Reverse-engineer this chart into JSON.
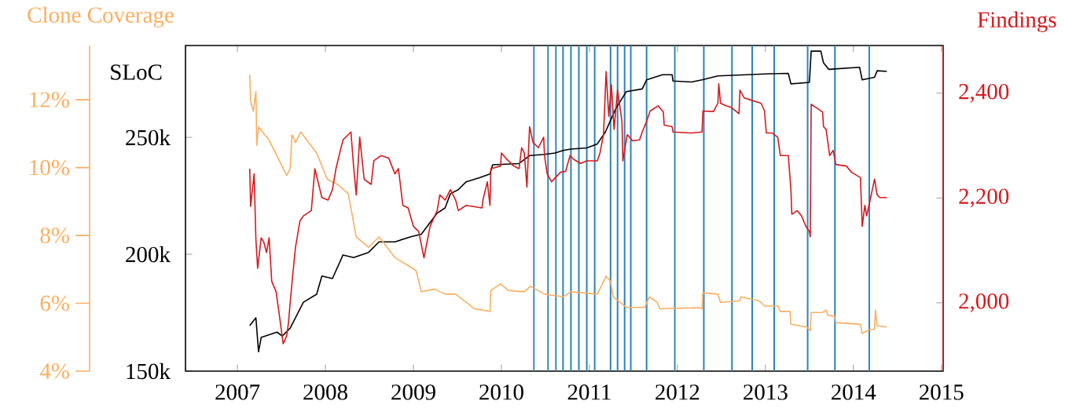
{
  "chart_data": {
    "type": "line",
    "ylabel": "SLoC",
    "y2label": "Findings",
    "y3label": "Clone Coverage",
    "xlim": [
      2006.41,
      2015.02
    ],
    "xticks": [
      2007,
      2008,
      2009,
      2010,
      2011,
      2012,
      2013,
      2014,
      2015
    ],
    "ylim": [
      150000,
      289300
    ],
    "yticks": [
      {
        "value": 150000,
        "label": "150k"
      },
      {
        "value": 200000,
        "label": "200k"
      },
      {
        "value": 250000,
        "label": "250k"
      }
    ],
    "y2lim": [
      1869.7,
      2491
    ],
    "y2ticks": [
      {
        "value": 2000,
        "label": "2,000"
      },
      {
        "value": 2200,
        "label": "2,200"
      },
      {
        "value": 2400,
        "label": "2,400"
      }
    ],
    "y3lim": [
      4,
      13.6
    ],
    "y3ticks": [
      {
        "value": 4,
        "label": "4%"
      },
      {
        "value": 6,
        "label": "6%"
      },
      {
        "value": 8,
        "label": "8%"
      },
      {
        "value": 10,
        "label": "10%"
      },
      {
        "value": 12,
        "label": "12%"
      }
    ],
    "series": [
      {
        "color": "#fdae61",
        "axis": "y3",
        "x": [
          2007.14,
          2007.15,
          2007.18,
          2007.21,
          2007.22,
          2007.24,
          2007.36,
          2007.56,
          2007.6,
          2007.62,
          2007.66,
          2007.72,
          2007.9,
          2008.02,
          2008.14,
          2008.26,
          2008.35,
          2008.49,
          2008.61,
          2008.79,
          2008.94,
          2009.03,
          2009.09,
          2009.24,
          2009.36,
          2009.48,
          2009.6,
          2009.69,
          2009.87,
          2009.88,
          2009.99,
          2010.08,
          2010.26,
          2010.33,
          2010.49,
          2010.7,
          2010.79,
          2011.09,
          2011.19,
          2011.24,
          2011.27,
          2011.42,
          2011.63,
          2011.68,
          2011.77,
          2011.8,
          2012.25,
          2012.28,
          2012.29,
          2012.46,
          2012.49,
          2012.71,
          2012.72,
          2012.93,
          2012.99,
          2013.14,
          2013.17,
          2013.28,
          2013.29,
          2013.47,
          2013.51,
          2013.52,
          2013.65,
          2013.69,
          2013.71,
          2013.79,
          2013.8,
          2014.08,
          2014.1,
          2014.19,
          2014.24,
          2014.25,
          2014.27,
          2014.38
        ],
        "values": [
          12.74,
          11.97,
          11.66,
          12.24,
          10.66,
          11.2,
          10.81,
          9.77,
          9.97,
          10.97,
          10.74,
          11.05,
          10.43,
          9.66,
          9.5,
          9.23,
          7.96,
          7.65,
          7.96,
          7.35,
          7.11,
          6.96,
          6.34,
          6.42,
          6.27,
          6.27,
          6.03,
          5.84,
          5.76,
          6.38,
          6.57,
          6.38,
          6.34,
          6.5,
          6.27,
          6.19,
          6.34,
          6.27,
          6.8,
          6.65,
          6.19,
          5.88,
          5.88,
          6.19,
          6.03,
          5.84,
          5.87,
          5.84,
          6.31,
          6.27,
          6.03,
          6.07,
          6.19,
          6.07,
          5.92,
          5.92,
          5.76,
          5.76,
          5.38,
          5.3,
          5.19,
          5.73,
          5.73,
          5.8,
          5.65,
          5.61,
          5.43,
          5.38,
          5.11,
          5.23,
          5.23,
          5.8,
          5.34,
          5.3
        ]
      },
      {
        "color": "#d7191c",
        "axis": "y2",
        "x": [
          2007.14,
          2007.15,
          2007.19,
          2007.21,
          2007.23,
          2007.27,
          2007.3,
          2007.33,
          2007.36,
          2007.39,
          2007.44,
          2007.48,
          2007.52,
          2007.56,
          2007.58,
          2007.6,
          2007.63,
          2007.66,
          2007.71,
          2007.75,
          2007.84,
          2007.88,
          2007.96,
          2008.03,
          2008.08,
          2008.12,
          2008.17,
          2008.2,
          2008.29,
          2008.32,
          2008.35,
          2008.39,
          2008.44,
          2008.52,
          2008.55,
          2008.63,
          2008.72,
          2008.79,
          2008.83,
          2008.88,
          2008.94,
          2009.0,
          2009.06,
          2009.12,
          2009.19,
          2009.27,
          2009.3,
          2009.36,
          2009.42,
          2009.48,
          2009.51,
          2009.6,
          2009.78,
          2009.79,
          2009.84,
          2009.87,
          2009.88,
          2009.99,
          2010.0,
          2010.05,
          2010.14,
          2010.2,
          2010.23,
          2010.26,
          2010.29,
          2010.32,
          2010.36,
          2010.42,
          2010.48,
          2010.49,
          2010.52,
          2010.57,
          2010.67,
          2010.73,
          2010.78,
          2010.82,
          2010.9,
          2010.97,
          2011.09,
          2011.12,
          2011.16,
          2011.19,
          2011.22,
          2011.25,
          2011.28,
          2011.32,
          2011.37,
          2011.38,
          2011.43,
          2011.49,
          2011.57,
          2011.6,
          2011.65,
          2011.69,
          2011.78,
          2011.84,
          2011.85,
          2011.94,
          2011.95,
          2012.16,
          2012.28,
          2012.29,
          2012.41,
          2012.46,
          2012.47,
          2012.49,
          2012.55,
          2012.61,
          2012.7,
          2012.71,
          2012.76,
          2012.85,
          2012.95,
          2012.99,
          2013.01,
          2013.08,
          2013.14,
          2013.17,
          2013.26,
          2013.29,
          2013.3,
          2013.36,
          2013.41,
          2013.46,
          2013.5,
          2013.51,
          2013.52,
          2013.59,
          2013.65,
          2013.66,
          2013.69,
          2013.73,
          2013.77,
          2013.8,
          2013.92,
          2013.98,
          2014.08,
          2014.1,
          2014.13,
          2014.15,
          2014.19,
          2014.24,
          2014.27,
          2014.3,
          2014.38
        ],
        "values": [
          2256,
          2184,
          2246,
          2121,
          2066,
          2124,
          2116,
          2096,
          2124,
          2041,
          2021,
          1972,
          1922,
          1937,
          1962,
          2001,
          2056,
          2106,
          2156,
          2166,
          2176,
          2256,
          2201,
          2196,
          2216,
          2256,
          2291,
          2311,
          2326,
          2261,
          2206,
          2316,
          2236,
          2226,
          2271,
          2281,
          2276,
          2246,
          2256,
          2186,
          2181,
          2146,
          2136,
          2086,
          2146,
          2176,
          2206,
          2196,
          2216,
          2196,
          2176,
          2186,
          2181,
          2196,
          2231,
          2186,
          2256,
          2261,
          2286,
          2276,
          2261,
          2256,
          2296,
          2286,
          2221,
          2336,
          2306,
          2296,
          2316,
          2281,
          2246,
          2231,
          2249,
          2251,
          2281,
          2274,
          2266,
          2271,
          2271,
          2286,
          2321,
          2441,
          2356,
          2416,
          2331,
          2406,
          2346,
          2271,
          2321,
          2309,
          2311,
          2326,
          2346,
          2366,
          2376,
          2364,
          2339,
          2336,
          2326,
          2324,
          2326,
          2366,
          2365,
          2381,
          2418,
          2381,
          2376,
          2373,
          2361,
          2406,
          2391,
          2386,
          2381,
          2366,
          2324,
          2324,
          2316,
          2281,
          2281,
          2216,
          2169,
          2176,
          2166,
          2146,
          2136,
          2126,
          2379,
          2371,
          2364,
          2336,
          2331,
          2281,
          2291,
          2264,
          2261,
          2249,
          2239,
          2146,
          2186,
          2166,
          2196,
          2236,
          2206,
          2201,
          2201
        ]
      },
      {
        "color": "#000000",
        "axis": "y",
        "x": [
          2007.14,
          2007.21,
          2007.24,
          2007.27,
          2007.45,
          2007.51,
          2007.6,
          2007.75,
          2007.9,
          2007.96,
          2008.08,
          2008.2,
          2008.32,
          2008.49,
          2008.61,
          2008.79,
          2008.97,
          2009.09,
          2009.27,
          2009.36,
          2009.42,
          2009.51,
          2009.6,
          2009.75,
          2009.87,
          2009.9,
          2010.2,
          2010.32,
          2010.49,
          2010.61,
          2010.7,
          2010.79,
          2010.97,
          2011.09,
          2011.18,
          2011.3,
          2011.42,
          2011.6,
          2011.65,
          2011.83,
          2011.94,
          2011.95,
          2012.16,
          2012.28,
          2012.46,
          2013.05,
          2013.26,
          2013.29,
          2013.5,
          2013.52,
          2013.63,
          2013.66,
          2013.72,
          2014.07,
          2014.1,
          2014.24,
          2014.27,
          2014.38
        ],
        "values": [
          169500,
          172800,
          158300,
          164400,
          166700,
          165000,
          168400,
          179500,
          182900,
          190700,
          189600,
          199700,
          198600,
          200800,
          205300,
          205300,
          207500,
          208600,
          217600,
          219800,
          225900,
          227600,
          231000,
          232700,
          234300,
          238300,
          238800,
          242200,
          242700,
          243300,
          244400,
          245000,
          245500,
          247200,
          252200,
          262300,
          269600,
          270700,
          274600,
          276800,
          276800,
          274100,
          273700,
          274600,
          276300,
          277200,
          277400,
          272900,
          273500,
          286900,
          286900,
          281900,
          279100,
          280000,
          274600,
          275700,
          278500,
          278200
        ]
      }
    ],
    "ref_lines": [
      {
        "axis": "x",
        "value": 2010.37,
        "color": "#2b83ba"
      },
      {
        "axis": "x",
        "value": 2010.53,
        "color": "#2b83ba"
      },
      {
        "axis": "x",
        "value": 2010.62,
        "color": "#2b83ba"
      },
      {
        "axis": "x",
        "value": 2010.7,
        "color": "#2b83ba"
      },
      {
        "axis": "x",
        "value": 2010.79,
        "color": "#2b83ba"
      },
      {
        "axis": "x",
        "value": 2010.88,
        "color": "#2b83ba"
      },
      {
        "axis": "x",
        "value": 2010.97,
        "color": "#2b83ba"
      },
      {
        "axis": "x",
        "value": 2011.06,
        "color": "#2b83ba"
      },
      {
        "axis": "x",
        "value": 2011.24,
        "color": "#2b83ba"
      },
      {
        "axis": "x",
        "value": 2011.32,
        "color": "#2b83ba"
      },
      {
        "axis": "x",
        "value": 2011.4,
        "color": "#2b83ba"
      },
      {
        "axis": "x",
        "value": 2011.47,
        "color": "#2b83ba"
      },
      {
        "axis": "x",
        "value": 2011.65,
        "color": "#2b83ba"
      },
      {
        "axis": "x",
        "value": 2011.97,
        "color": "#2b83ba"
      },
      {
        "axis": "x",
        "value": 2012.3,
        "color": "#2b83ba"
      },
      {
        "axis": "x",
        "value": 2012.62,
        "color": "#2b83ba"
      },
      {
        "axis": "x",
        "value": 2012.85,
        "color": "#2b83ba"
      },
      {
        "axis": "x",
        "value": 2013.1,
        "color": "#2b83ba"
      },
      {
        "axis": "x",
        "value": 2013.48,
        "color": "#2b83ba"
      },
      {
        "axis": "x",
        "value": 2013.79,
        "color": "#2b83ba"
      },
      {
        "axis": "x",
        "value": 2014.18,
        "color": "#2b83ba"
      }
    ]
  }
}
